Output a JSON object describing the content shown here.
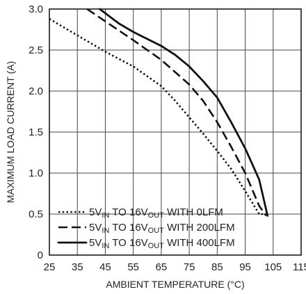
{
  "chart_data": {
    "type": "line",
    "xlabel": "AMBIENT TEMPERATURE (°C)",
    "ylabel": "MAXIMUM LOAD CURRENT (A)",
    "xlim": [
      25,
      115
    ],
    "ylim": [
      0,
      3.0
    ],
    "x_ticks": [
      25,
      35,
      45,
      55,
      65,
      75,
      85,
      95,
      105,
      115
    ],
    "x_tick_labels": [
      "25",
      "35",
      "45",
      "55",
      "65",
      "75",
      "85",
      "95",
      "105",
      "115"
    ],
    "y_ticks": [
      0,
      0.5,
      1.0,
      1.5,
      2.0,
      2.5,
      3.0
    ],
    "y_tick_labels": [
      "0",
      "0.5",
      "1.0",
      "1.5",
      "2.0",
      "2.5",
      "3.0"
    ],
    "grid": true,
    "legend_position": "bottom-left",
    "series": [
      {
        "name_parts": [
          "5V",
          "IN",
          " TO 16V",
          "OUT",
          " WITH 0LFM"
        ],
        "style": "dotted",
        "x": [
          25,
          35,
          45,
          55,
          65,
          70,
          75,
          80,
          85,
          90,
          95,
          100,
          102
        ],
        "y": [
          2.88,
          2.68,
          2.48,
          2.3,
          2.06,
          1.88,
          1.68,
          1.48,
          1.27,
          1.05,
          0.78,
          0.5,
          0.5
        ]
      },
      {
        "name_parts": [
          "5V",
          "IN",
          " TO 16V",
          "OUT",
          " WITH 200LFM"
        ],
        "style": "dashed",
        "x": [
          38.5,
          45,
          55,
          65,
          70,
          75,
          80,
          85,
          90,
          95,
          100,
          102.5
        ],
        "y": [
          3.0,
          2.85,
          2.62,
          2.38,
          2.23,
          2.08,
          1.88,
          1.62,
          1.32,
          1.0,
          0.6,
          0.48
        ]
      },
      {
        "name_parts": [
          "5V",
          "IN",
          " TO 16V",
          "OUT",
          " WITH 400LFM"
        ],
        "style": "solid",
        "x": [
          43,
          50,
          55,
          65,
          70,
          75,
          80,
          85,
          90,
          95,
          100,
          103
        ],
        "y": [
          3.0,
          2.82,
          2.72,
          2.55,
          2.44,
          2.3,
          2.12,
          1.92,
          1.62,
          1.3,
          0.92,
          0.48
        ]
      }
    ]
  }
}
